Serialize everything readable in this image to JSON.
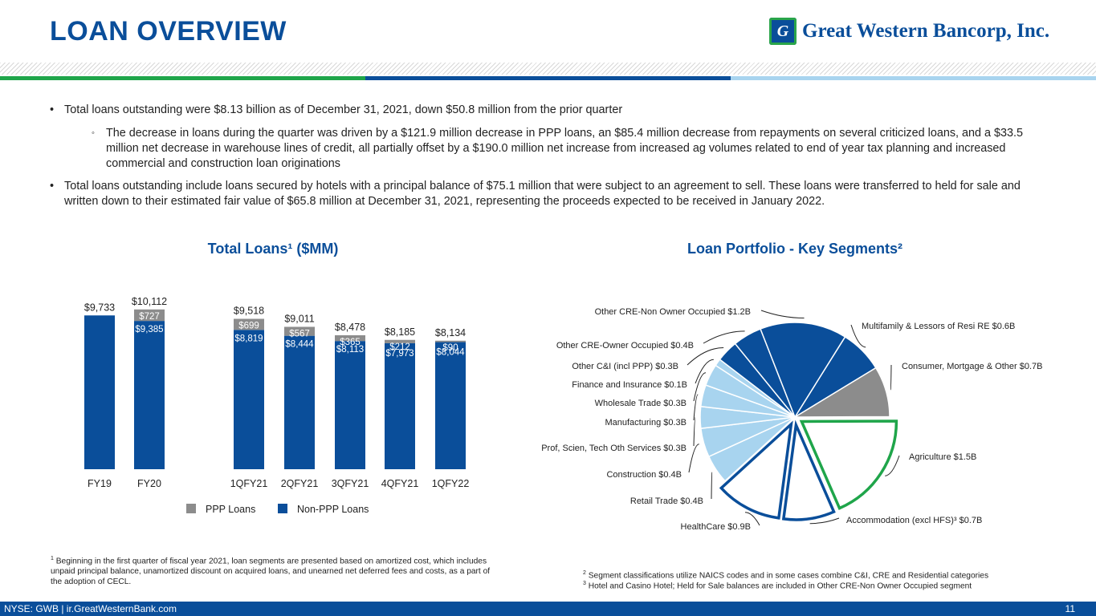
{
  "header": {
    "title": "LOAN OVERVIEW",
    "logo_mark": "G",
    "logo_text": "Great Western Bancorp, Inc.",
    "colors": {
      "green": "#1fa54a",
      "blue": "#0a4e9a",
      "light_blue": "#a8d4ef",
      "gray": "#8c8c8c"
    }
  },
  "bullets": {
    "b1": "Total loans outstanding were $8.13 billion as of December 31, 2021, down $50.8 million from the prior quarter",
    "b1_sub": "The decrease in loans during the quarter was driven by a $121.9 million decrease in PPP loans, an $85.4 million decrease from repayments on several criticized loans, and a $33.5 million net decrease in warehouse lines of credit, all partially offset by a $190.0 million net increase from increased ag volumes related to end of year tax planning and increased commercial and construction loan originations",
    "b2": "Total loans outstanding include loans secured by hotels with a principal balance of $75.1 million that were subject to an agreement to sell. These loans were transferred to held for sale and written down to their estimated fair value of $65.8 million at December 31, 2021, representing the proceeds expected to be received in January 2022."
  },
  "chart_data": [
    {
      "type": "bar",
      "stacked": true,
      "title": "Total Loans¹ ($MM)",
      "categories": [
        "FY19",
        "FY20",
        "1QFY21",
        "2QFY21",
        "3QFY21",
        "4QFY21",
        "1QFY22"
      ],
      "series": [
        {
          "name": "Non-PPP Loans",
          "color": "#0a4e9a",
          "values": [
            9733,
            9385,
            8819,
            8444,
            8113,
            7973,
            8044
          ],
          "labels": [
            "",
            "$9,385",
            "$8,819",
            "$8,444",
            "$8,113",
            "$7,973",
            "$8,044"
          ]
        },
        {
          "name": "PPP Loans",
          "color": "#8c8c8c",
          "values": [
            0,
            727,
            699,
            567,
            365,
            212,
            90
          ],
          "labels": [
            "",
            "$727",
            "$699",
            "$567",
            "$365",
            "$212",
            "$90"
          ]
        }
      ],
      "totals": [
        9733,
        10112,
        9518,
        9011,
        8478,
        8185,
        8134
      ],
      "total_labels": [
        "$9,733",
        "$10,112",
        "$9,518",
        "$9,011",
        "$8,478",
        "$8,185",
        "$8,134"
      ],
      "ylim": [
        0,
        10500
      ],
      "legend": [
        "PPP Loans",
        "Non-PPP Loans"
      ]
    },
    {
      "type": "pie",
      "title": "Loan Portfolio - Key Segments²",
      "slices": [
        {
          "label": "Multifamily & Lessors of Resi RE $0.6B",
          "value": 0.6,
          "color": "#0a4e9a"
        },
        {
          "label": "Consumer, Mortgage & Other $0.7B",
          "value": 0.7,
          "color": "#8c8c8c"
        },
        {
          "label": "Agriculture $1.5B",
          "value": 1.5,
          "color": "#ffffff",
          "outline": "#1fa54a",
          "exploded": true
        },
        {
          "label": "Accommodation (excl HFS)³ $0.7B",
          "value": 0.7,
          "color": "#ffffff",
          "outline": "#0a4e9a",
          "exploded": true
        },
        {
          "label": "HealthCare $0.9B",
          "value": 0.9,
          "color": "#ffffff",
          "outline": "#0a4e9a",
          "exploded": true
        },
        {
          "label": "Retail Trade $0.4B",
          "value": 0.4,
          "color": "#a8d4ef"
        },
        {
          "label": "Construction $0.4B",
          "value": 0.4,
          "color": "#a8d4ef"
        },
        {
          "label": "Prof, Scien, Tech Oth Services $0.3B",
          "value": 0.3,
          "color": "#a8d4ef"
        },
        {
          "label": "Manufacturing $0.3B",
          "value": 0.3,
          "color": "#a8d4ef"
        },
        {
          "label": "Wholesale Trade $0.3B",
          "value": 0.3,
          "color": "#a8d4ef"
        },
        {
          "label": "Finance and Insurance $0.1B",
          "value": 0.1,
          "color": "#a8d4ef"
        },
        {
          "label": "Other C&I (incl PPP) $0.3B",
          "value": 0.3,
          "color": "#0a4e9a"
        },
        {
          "label": "Other CRE-Owner Occupied $0.4B",
          "value": 0.4,
          "color": "#0a4e9a"
        },
        {
          "label": "Other CRE-Non Owner Occupied $1.2B",
          "value": 1.2,
          "color": "#0a4e9a"
        }
      ]
    }
  ],
  "footnotes": {
    "f1": "Beginning in the first quarter of fiscal year 2021, loan segments are presented based on amortized cost, which includes unpaid principal balance, unamortized discount on acquired loans, and unearned net deferred fees and costs, as a part of the adoption of CECL.",
    "f2": "Segment classifications utilize NAICS codes and in some cases combine C&I, CRE and Residential categories",
    "f3": "Hotel and Casino Hotel; Held for Sale balances are included in Other CRE-Non Owner Occupied segment"
  },
  "footer": {
    "left": "NYSE: GWB  |  ir.GreatWesternBank.com",
    "page": "11"
  }
}
